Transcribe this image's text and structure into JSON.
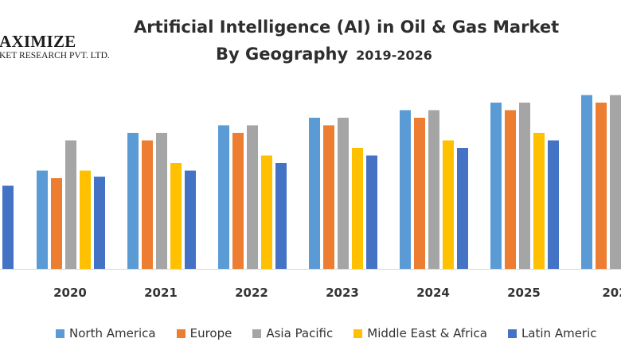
{
  "logo": {
    "line1": "AXIMIZE",
    "line2": "KET RESEARCH PVT. LTD."
  },
  "chart_data": {
    "type": "bar",
    "title_line1": "Artificial Intelligence (AI) in Oil & Gas Market",
    "title_line2": "By Geography",
    "period": "2019-2026",
    "categories": [
      "2020",
      "2021",
      "2022",
      "2023",
      "2024",
      "2025",
      "202"
    ],
    "ylim": [
      0,
      240
    ],
    "grid": false,
    "legend_position": "bottom",
    "series": [
      {
        "name": "North America",
        "color": "#5b9bd5",
        "values": [
          130,
          180,
          190,
          200,
          210,
          220,
          230
        ]
      },
      {
        "name": "Europe",
        "color": "#ed7d31",
        "values": [
          120,
          170,
          180,
          190,
          200,
          210,
          220
        ]
      },
      {
        "name": "Asia Pacific",
        "color": "#a5a5a5",
        "values": [
          170,
          180,
          190,
          200,
          210,
          220,
          230
        ]
      },
      {
        "name": "Middle East & Africa",
        "color": "#ffc000",
        "values": [
          130,
          140,
          150,
          160,
          170,
          180,
          null
        ]
      },
      {
        "name": "Latin America",
        "color": "#4472c4",
        "values": [
          122,
          130,
          140,
          150,
          160,
          170,
          null
        ]
      }
    ],
    "partial_leading_bar": {
      "series": "Latin America",
      "value": 110
    },
    "legend_labels": [
      "North America",
      "Europe",
      "Asia Pacific",
      "Middle East & Africa",
      "Latin Americ"
    ]
  }
}
